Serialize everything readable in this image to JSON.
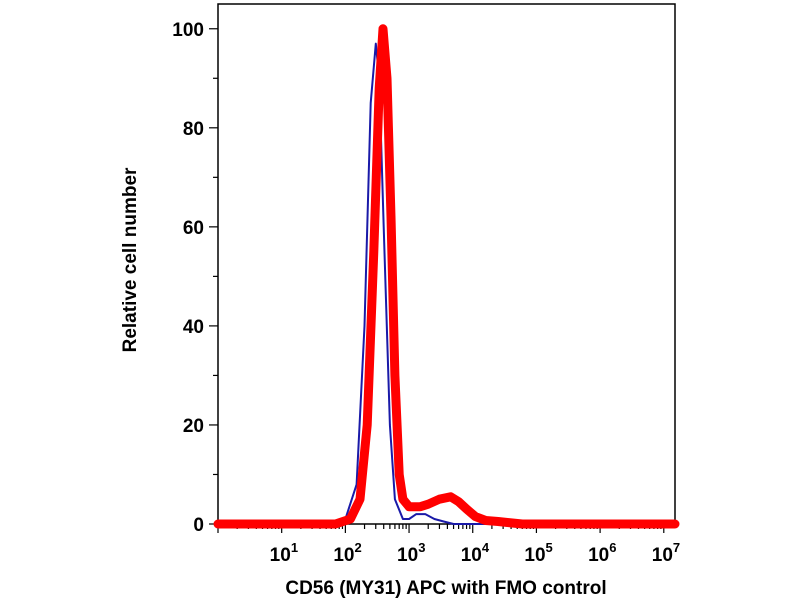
{
  "chart_data": {
    "type": "line",
    "title": "",
    "xlabel": "CD56 (MY31) APC with FMO control",
    "ylabel": "Relative cell number",
    "x_scale": "log",
    "xlim": [
      1,
      15000000
    ],
    "ylim": [
      0,
      105
    ],
    "x_ticks": [
      {
        "value": 10,
        "base": "10",
        "exp": "1"
      },
      {
        "value": 100,
        "base": "10",
        "exp": "2"
      },
      {
        "value": 1000,
        "base": "10",
        "exp": "3"
      },
      {
        "value": 10000,
        "base": "10",
        "exp": "4"
      },
      {
        "value": 100000,
        "base": "10",
        "exp": "5"
      },
      {
        "value": 1000000,
        "base": "10",
        "exp": "6"
      },
      {
        "value": 10000000,
        "base": "10",
        "exp": "7"
      }
    ],
    "y_ticks": [
      0,
      20,
      40,
      60,
      80,
      100
    ],
    "y_tick_labels": [
      "0",
      "20",
      "40",
      "60",
      "80",
      "100"
    ],
    "series": [
      {
        "color": "#1a1aa8",
        "line_width": 2,
        "points": [
          [
            1,
            0
          ],
          [
            50,
            0
          ],
          [
            100,
            1
          ],
          [
            150,
            8
          ],
          [
            200,
            40
          ],
          [
            250,
            85
          ],
          [
            300,
            97
          ],
          [
            340,
            90
          ],
          [
            400,
            60
          ],
          [
            500,
            20
          ],
          [
            600,
            5
          ],
          [
            800,
            1
          ],
          [
            1000,
            1
          ],
          [
            1300,
            2
          ],
          [
            1800,
            2
          ],
          [
            2500,
            1
          ],
          [
            3500,
            0.5
          ],
          [
            5000,
            0
          ],
          [
            1000000,
            0
          ],
          [
            15000000,
            0
          ]
        ]
      },
      {
        "color": "#ff0000",
        "line_width": 9,
        "points": [
          [
            1,
            0
          ],
          [
            70,
            0
          ],
          [
            120,
            1
          ],
          [
            170,
            5
          ],
          [
            220,
            20
          ],
          [
            280,
            55
          ],
          [
            340,
            88
          ],
          [
            390,
            100
          ],
          [
            450,
            90
          ],
          [
            520,
            62
          ],
          [
            600,
            30
          ],
          [
            700,
            10
          ],
          [
            800,
            5
          ],
          [
            1000,
            3.5
          ],
          [
            1500,
            3.5
          ],
          [
            2000,
            4
          ],
          [
            3000,
            5
          ],
          [
            4500,
            5.5
          ],
          [
            6000,
            4.5
          ],
          [
            8000,
            3
          ],
          [
            11000,
            1.5
          ],
          [
            16000,
            0.7
          ],
          [
            25000,
            0.5
          ],
          [
            35000,
            0.3
          ],
          [
            60000,
            0
          ],
          [
            15000000,
            0
          ]
        ]
      }
    ]
  }
}
